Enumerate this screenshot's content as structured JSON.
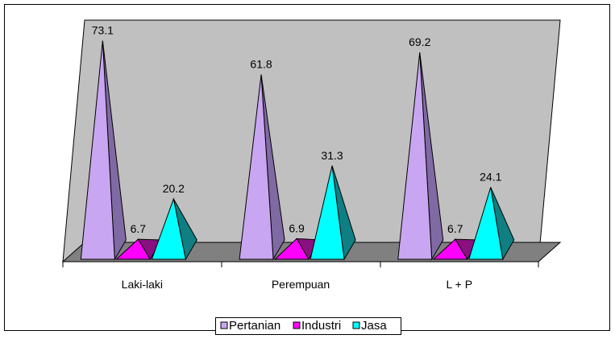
{
  "chart_data": {
    "type": "bar",
    "style": "3d-pyramid",
    "categories": [
      "Laki-laki",
      "Perempuan",
      "L + P"
    ],
    "series": [
      {
        "name": "Pertanian",
        "values": [
          73.1,
          61.8,
          69.2
        ],
        "color": "#c9a6f2",
        "shade": "#7f6aa3"
      },
      {
        "name": "Industri",
        "values": [
          6.7,
          6.9,
          6.7
        ],
        "color": "#ff00ff",
        "shade": "#8a0f7f"
      },
      {
        "name": "Jasa",
        "values": [
          20.2,
          31.3,
          24.1
        ],
        "color": "#00ffff",
        "shade": "#0f7f83"
      }
    ],
    "ylim": [
      0,
      80
    ],
    "legend": "bottom",
    "grid": false,
    "data_labels": true
  },
  "colors": {
    "wall": "#c0c0c0",
    "floor": "#808080",
    "border": "#000000"
  }
}
